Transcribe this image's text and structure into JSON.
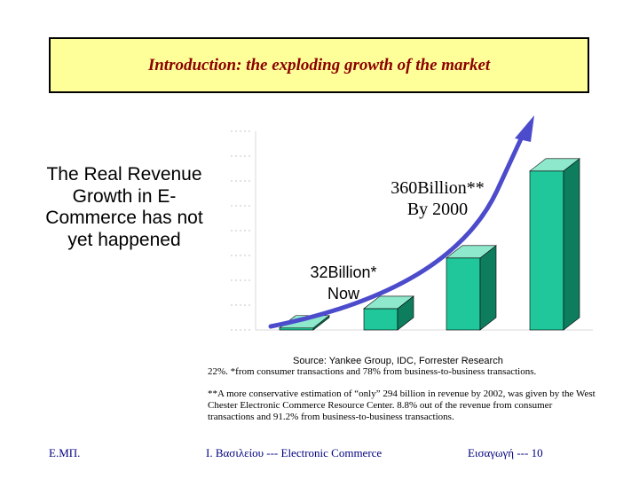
{
  "slide": {
    "title": "Introduction: the exploding growth of the market",
    "left_text": "The Real Revenue Growth in E-Commerce has not yet happened",
    "callout_360_line1": "360Billion**",
    "callout_360_line2": "By 2000",
    "callout_32_line1": "32Billion*",
    "callout_32_line2": "Now",
    "source": "Source: Yankee Group, IDC, Forrester Research",
    "footnote_1": "22%. *from consumer transactions and 78% from business-to-business transactions.",
    "footnote_2": "**A more conservative estimation of “only” 294 billion in revenue by 2002, was given by the West Chester Electronic Commerce Resource Center. 8.8% out of the revenue from consumer transactions and 91.2% from business-to-business transactions."
  },
  "footer": {
    "left": "Ε.ΜΠ.",
    "center": "Ι. Βασιλείου --- Electronic Commerce",
    "right": "Εισαγωγή --- 10"
  },
  "colors": {
    "title_bg": "#ffff99",
    "title_text": "#8b0000",
    "bar_front": "#1fc79a",
    "bar_side": "#0e7d5e",
    "bar_top": "#8ee8cc",
    "arrow": "#4b4bcc",
    "footer_text": "#000080"
  },
  "chart_data": {
    "type": "bar",
    "categories": [
      "",
      "",
      "",
      ""
    ],
    "values": [
      0.4,
      4.3,
      14.5,
      32
    ],
    "xlabel": "",
    "ylabel": "",
    "ylim": [
      0,
      40
    ],
    "grid": false
  }
}
